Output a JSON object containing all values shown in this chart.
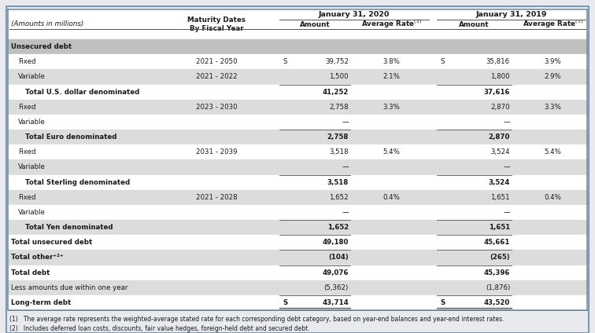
{
  "rows": [
    {
      "label": "Unsecured debt",
      "maturity": "",
      "amt2020": "",
      "rate2020": "",
      "amt2019": "",
      "rate2019": "",
      "style": "section_header",
      "shade": true
    },
    {
      "label": "    Fixed",
      "maturity": "2021 - 2050",
      "amt2020": "39,752",
      "rate2020": "3.8%",
      "amt2019": "35,816",
      "rate2019": "3.9%",
      "style": "normal",
      "shade": false,
      "dollar2020": true,
      "dollar2019": true
    },
    {
      "label": "    Variable",
      "maturity": "2021 - 2022",
      "amt2020": "1,500",
      "rate2020": "2.1%",
      "amt2019": "1,800",
      "rate2019": "2.9%",
      "style": "normal",
      "shade": true,
      "dollar2020": false,
      "dollar2019": false
    },
    {
      "label": "        Total U.S. dollar denominated",
      "maturity": "",
      "amt2020": "41,252",
      "rate2020": "",
      "amt2019": "37,616",
      "rate2019": "",
      "style": "subtotal",
      "shade": false,
      "dollar2020": false,
      "dollar2019": false
    },
    {
      "label": "    Fixed",
      "maturity": "2023 - 2030",
      "amt2020": "2,758",
      "rate2020": "3.3%",
      "amt2019": "2,870",
      "rate2019": "3.3%",
      "style": "normal",
      "shade": true,
      "dollar2020": false,
      "dollar2019": false
    },
    {
      "label": "    Variable",
      "maturity": "",
      "amt2020": "—",
      "rate2020": "",
      "amt2019": "—",
      "rate2019": "",
      "style": "normal",
      "shade": false,
      "dollar2020": false,
      "dollar2019": false
    },
    {
      "label": "        Total Euro denominated",
      "maturity": "",
      "amt2020": "2,758",
      "rate2020": "",
      "amt2019": "2,870",
      "rate2019": "",
      "style": "subtotal",
      "shade": true,
      "dollar2020": false,
      "dollar2019": false
    },
    {
      "label": "    Fixed",
      "maturity": "2031 - 2039",
      "amt2020": "3,518",
      "rate2020": "5.4%",
      "amt2019": "3,524",
      "rate2019": "5.4%",
      "style": "normal",
      "shade": false,
      "dollar2020": false,
      "dollar2019": false
    },
    {
      "label": "    Variable",
      "maturity": "",
      "amt2020": "—",
      "rate2020": "",
      "amt2019": "—",
      "rate2019": "",
      "style": "normal",
      "shade": true,
      "dollar2020": false,
      "dollar2019": false
    },
    {
      "label": "        Total Sterling denominated",
      "maturity": "",
      "amt2020": "3,518",
      "rate2020": "",
      "amt2019": "3,524",
      "rate2019": "",
      "style": "subtotal",
      "shade": false,
      "dollar2020": false,
      "dollar2019": false
    },
    {
      "label": "    Fixed",
      "maturity": "2021 - 2028",
      "amt2020": "1,652",
      "rate2020": "0.4%",
      "amt2019": "1,651",
      "rate2019": "0.4%",
      "style": "normal",
      "shade": true,
      "dollar2020": false,
      "dollar2019": false
    },
    {
      "label": "    Variable",
      "maturity": "",
      "amt2020": "—",
      "rate2020": "",
      "amt2019": "—",
      "rate2019": "",
      "style": "normal",
      "shade": false,
      "dollar2020": false,
      "dollar2019": false
    },
    {
      "label": "        Total Yen denominated",
      "maturity": "",
      "amt2020": "1,652",
      "rate2020": "",
      "amt2019": "1,651",
      "rate2019": "",
      "style": "subtotal",
      "shade": true,
      "dollar2020": false,
      "dollar2019": false
    },
    {
      "label": "Total unsecured debt",
      "maturity": "",
      "amt2020": "49,180",
      "rate2020": "",
      "amt2019": "45,661",
      "rate2019": "",
      "style": "bold",
      "shade": false,
      "dollar2020": false,
      "dollar2019": false
    },
    {
      "label": "Total other⁺²⁺",
      "maturity": "",
      "amt2020": "(104)",
      "rate2020": "",
      "amt2019": "(265)",
      "rate2019": "",
      "style": "bold",
      "shade": true,
      "dollar2020": false,
      "dollar2019": false
    },
    {
      "label": "Total debt",
      "maturity": "",
      "amt2020": "49,076",
      "rate2020": "",
      "amt2019": "45,396",
      "rate2019": "",
      "style": "bold",
      "shade": false,
      "dollar2020": false,
      "dollar2019": false
    },
    {
      "label": "Less amounts due within one year",
      "maturity": "",
      "amt2020": "(5,362)",
      "rate2020": "",
      "amt2019": "(1,876)",
      "rate2019": "",
      "style": "normal",
      "shade": true,
      "dollar2020": false,
      "dollar2019": false
    },
    {
      "label": "Long-term debt",
      "maturity": "",
      "amt2020": "43,714",
      "rate2020": "",
      "amt2019": "43,520",
      "rate2019": "",
      "style": "bold_final",
      "shade": false,
      "dollar2020": true,
      "dollar2019": true
    }
  ],
  "footnotes": [
    "(1)   The average rate represents the weighted-average stated rate for each corresponding debt category, based on year-end balances and year-end interest rates.",
    "(2)   Includes deferred loan costs, discounts, fair value hedges, foreign-held debt and secured debt."
  ],
  "bg_color": "#ffffff",
  "shade_color": "#dcdcdc",
  "section_bg": "#c0c0c0",
  "text_color": "#1a1a1a",
  "line_color": "#555555"
}
